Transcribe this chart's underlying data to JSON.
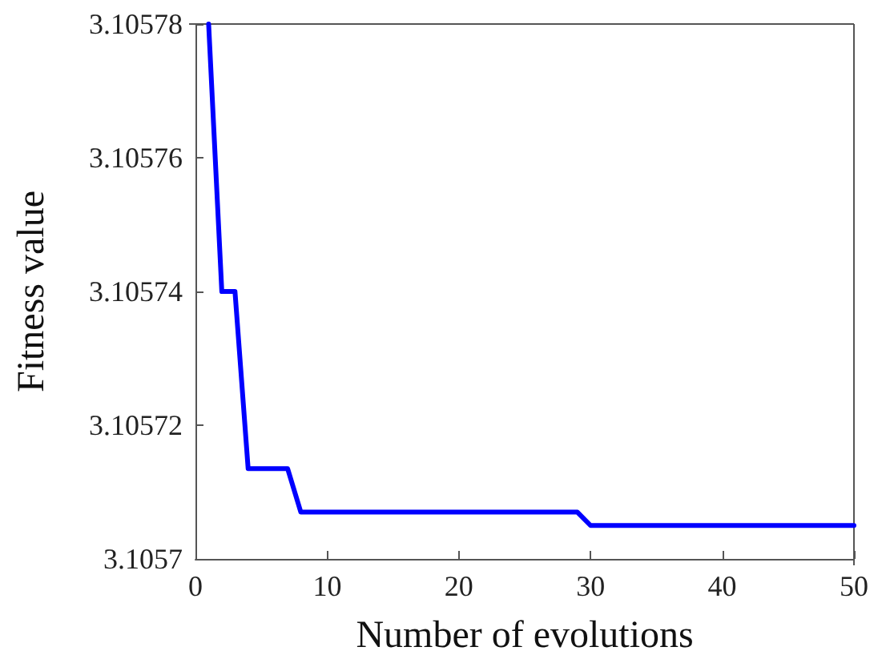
{
  "chart_data": {
    "type": "line",
    "xlabel": "Number of evolutions",
    "ylabel": "Fitness value",
    "x": [
      1,
      2,
      3,
      4,
      7,
      8,
      29,
      30,
      50
    ],
    "series": [
      {
        "color": "#0000ff",
        "values": [
          3.10578,
          3.10574,
          3.10574,
          3.1057135,
          3.1057135,
          3.105707,
          3.105707,
          3.105705,
          3.105705
        ]
      }
    ],
    "xlim": [
      0,
      50
    ],
    "xticks": [
      0,
      10,
      20,
      30,
      40,
      50
    ],
    "ylim": [
      3.1057,
      3.10578
    ],
    "yticks": [
      3.1057,
      3.10572,
      3.10574,
      3.10576,
      3.10578
    ],
    "grid": false,
    "marker": "none",
    "line_style": "solid"
  }
}
